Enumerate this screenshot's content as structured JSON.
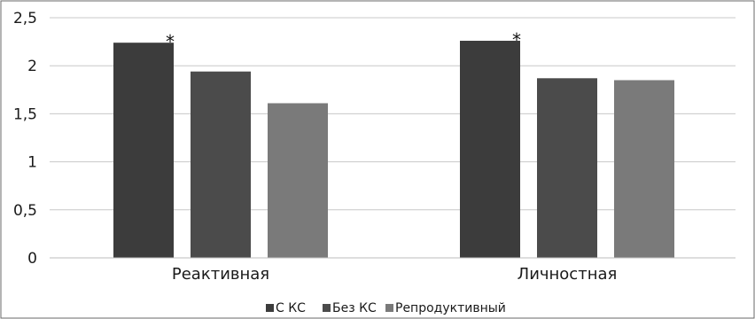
{
  "chart_data": {
    "type": "bar",
    "title": "",
    "xlabel": "",
    "ylabel": "",
    "categories": [
      "Реактивная",
      "Личностная"
    ],
    "series": [
      {
        "name": "С КС",
        "values": [
          2.24,
          2.26
        ],
        "color": "#3c3c3c"
      },
      {
        "name": "Без КС",
        "values": [
          1.94,
          1.87
        ],
        "color": "#4b4b4b"
      },
      {
        "name": "Репродуктивный",
        "values": [
          1.61,
          1.85
        ],
        "color": "#7a7a7a"
      }
    ],
    "ylim": [
      0,
      2.5
    ],
    "yticks": [
      0,
      0.5,
      1,
      1.5,
      2,
      2.5
    ],
    "ytick_labels": [
      "0",
      "0,5",
      "1",
      "1,5",
      "2",
      "2,5"
    ],
    "grid": true,
    "legend_position": "bottom",
    "annotations": [
      {
        "text": "*",
        "category_index": 0,
        "series_index": 0
      },
      {
        "text": "*",
        "category_index": 1,
        "series_index": 0
      }
    ]
  }
}
